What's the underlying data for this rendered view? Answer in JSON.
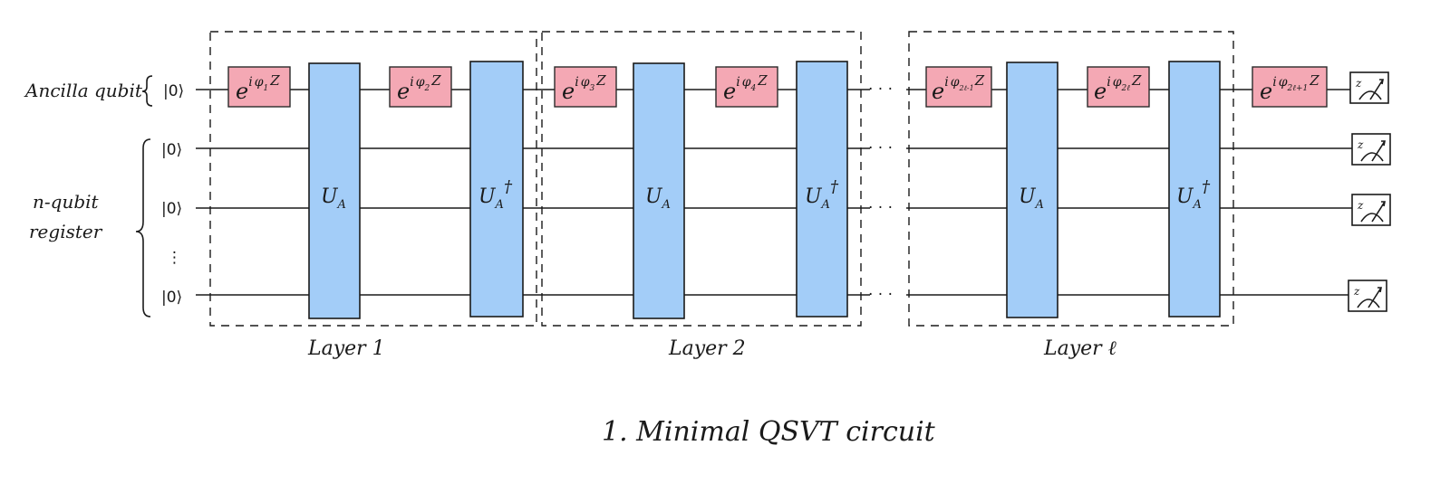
{
  "left_labels": {
    "ancilla": "Ancilla qubit",
    "register_line1": "n-qubit",
    "register_line2": "register"
  },
  "kets": {
    "ancilla": "|0⟩",
    "reg1": "|0⟩",
    "reg2": "|0⟩",
    "reg_last": "|0⟩",
    "vdots": "⋮"
  },
  "phase_gates": [
    {
      "base": "e",
      "exp_i": "i",
      "phi": "φ",
      "sub": "1",
      "op": "Z"
    },
    {
      "base": "e",
      "exp_i": "i",
      "phi": "φ",
      "sub": "2",
      "op": "Z"
    },
    {
      "base": "e",
      "exp_i": "i",
      "phi": "φ",
      "sub": "3",
      "op": "Z"
    },
    {
      "base": "e",
      "exp_i": "i",
      "phi": "φ",
      "sub": "4",
      "op": "Z"
    },
    {
      "base": "e",
      "exp_i": "i",
      "phi": "φ",
      "sub": "2ℓ-1",
      "op": "Z"
    },
    {
      "base": "e",
      "exp_i": "i",
      "phi": "φ",
      "sub": "2ℓ",
      "op": "Z"
    },
    {
      "base": "e",
      "exp_i": "i",
      "phi": "φ",
      "sub": "2ℓ+1",
      "op": "Z"
    }
  ],
  "unitary_gates": [
    {
      "main": "U",
      "sub": "A",
      "sup": ""
    },
    {
      "main": "U",
      "sub": "A",
      "sup": "†"
    },
    {
      "main": "U",
      "sub": "A",
      "sup": ""
    },
    {
      "main": "U",
      "sub": "A",
      "sup": "†"
    },
    {
      "main": "U",
      "sub": "A",
      "sup": ""
    },
    {
      "main": "U",
      "sub": "A",
      "sup": "†"
    }
  ],
  "dots": "· · ·",
  "layers": [
    "Layer 1",
    "Layer 2",
    "Layer ℓ"
  ],
  "measurement_label": "z",
  "caption": "1.  Minimal  QSVT  circuit",
  "colors": {
    "phase_gate_fill": "#f4a8b4",
    "unitary_gate_fill": "#a3cdf8",
    "ink": "#1a1a1a"
  }
}
